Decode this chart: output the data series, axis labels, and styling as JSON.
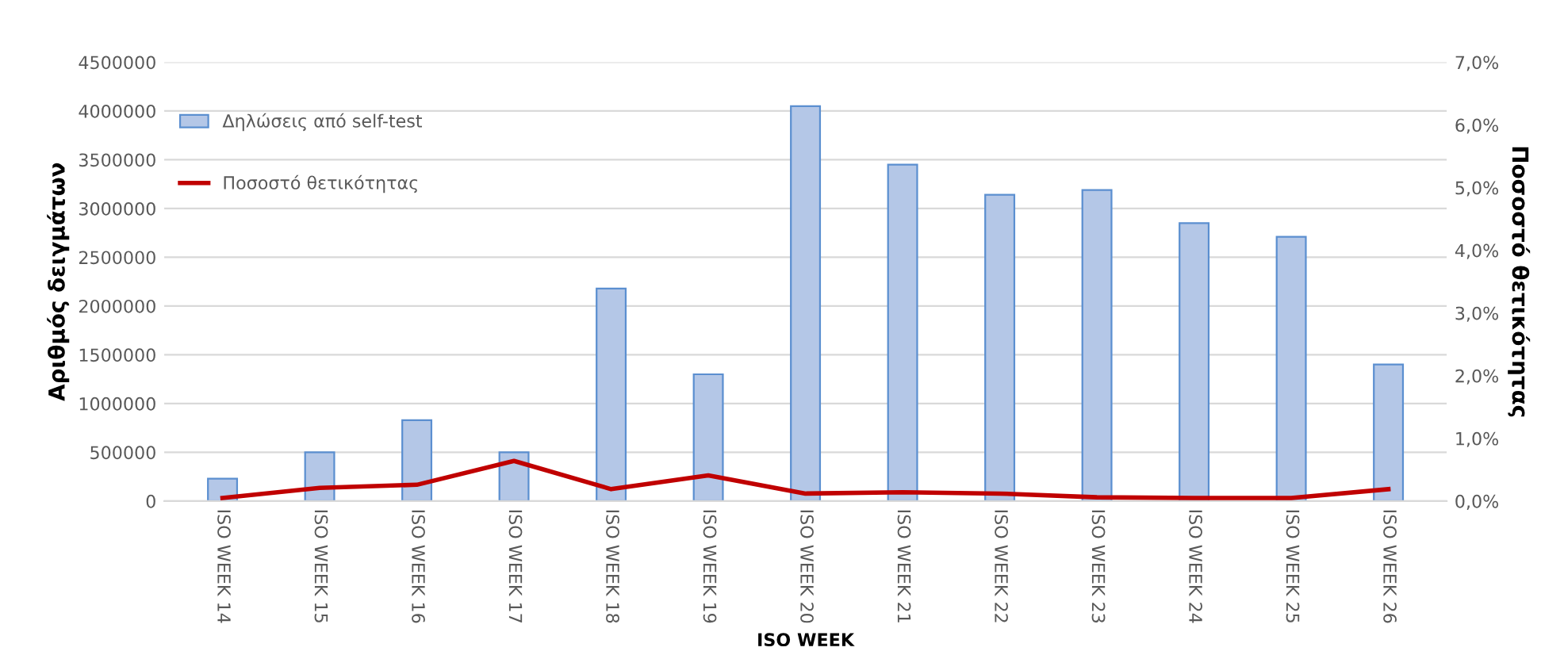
{
  "chart_data": {
    "type": "bar",
    "categories": [
      "ISO WEEK 14",
      "ISO WEEK 15",
      "ISO WEEK 16",
      "ISO WEEK 17",
      "ISO WEEK 18",
      "ISO WEEK 19",
      "ISO WEEK 20",
      "ISO WEEK 21",
      "ISO WEEK 22",
      "ISO WEEK 23",
      "ISO WEEK 24",
      "ISO WEEK 25",
      "ISO WEEK 26"
    ],
    "series": [
      {
        "name": "Δηλώσεις από self-test",
        "color": "#b4c7e7",
        "values": [
          230000,
          500000,
          830000,
          500000,
          2180000,
          1300000,
          4050000,
          3450000,
          3140000,
          3190000,
          2850000,
          2710000,
          1400000
        ]
      },
      {
        "name": "Ποσοστό θετικότητας",
        "type": "line",
        "axis": "y2",
        "color": "#c00000",
        "values": [
          0.05,
          0.21,
          0.26,
          0.64,
          0.19,
          0.41,
          0.12,
          0.14,
          0.12,
          0.06,
          0.05,
          0.05,
          0.19
        ]
      }
    ],
    "xlabel": "ISO WEEK",
    "ylabel": "Αριθμός δειγμάτων",
    "y2label": "Ποσοστό θετικότητας",
    "ylim": [
      0,
      4500000
    ],
    "yticks": [
      0,
      500000,
      1000000,
      1500000,
      2000000,
      2500000,
      3000000,
      3500000,
      4000000,
      4500000
    ],
    "y2lim": [
      0,
      7
    ],
    "y2ticks": [
      {
        "value": 0,
        "label": "0,0%"
      },
      {
        "value": 1,
        "label": "1,0%"
      },
      {
        "value": 2,
        "label": "2,0%"
      },
      {
        "value": 3,
        "label": "3,0%"
      },
      {
        "value": 4,
        "label": "4,0%"
      },
      {
        "value": 5,
        "label": "5,0%"
      },
      {
        "value": 6,
        "label": "6,0%"
      },
      {
        "value": 7,
        "label": "7,0%"
      }
    ],
    "grid": "y",
    "legend": "top left"
  }
}
